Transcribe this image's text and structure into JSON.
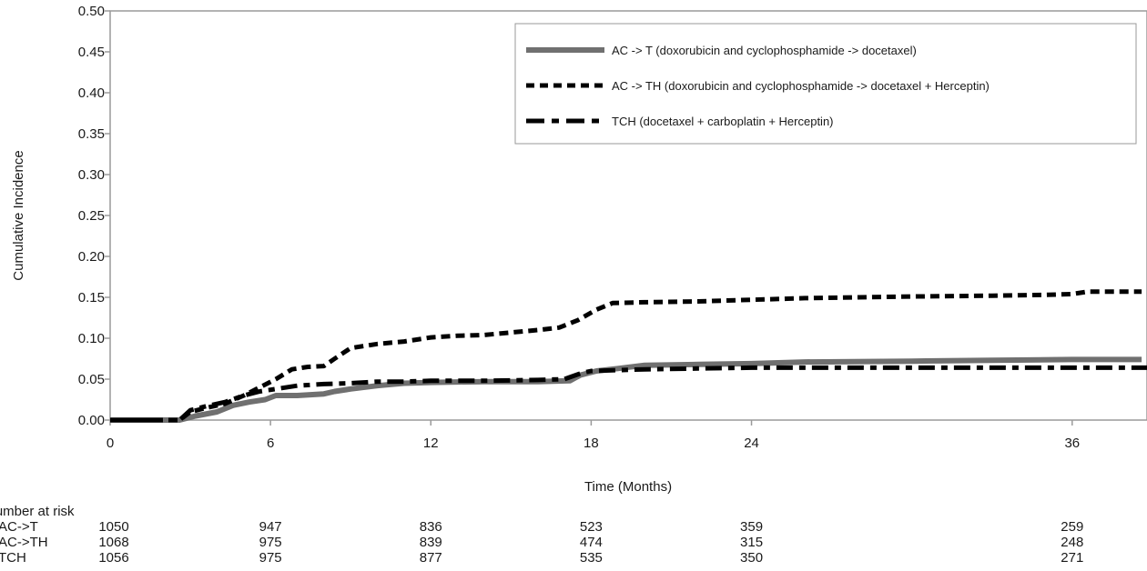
{
  "chart_data": {
    "type": "line",
    "title": "",
    "xlabel": "Time (Months)",
    "ylabel": "Cumulative Incidence",
    "xlim": [
      0,
      38.8
    ],
    "ylim": [
      0,
      0.5
    ],
    "xticks": [
      0,
      6,
      12,
      18,
      24,
      36
    ],
    "yticks": [
      "0.00",
      "0.05",
      "0.10",
      "0.15",
      "0.20",
      "0.25",
      "0.30",
      "0.35",
      "0.40",
      "0.45",
      "0.50"
    ],
    "grid": false,
    "legend_position": "top-right",
    "series": [
      {
        "name": "AC -> T (doxorubicin and cyclophosphamide -> docetaxel)",
        "style": "solid",
        "color": "#707070",
        "points": [
          [
            0,
            0
          ],
          [
            2.6,
            0
          ],
          [
            3.2,
            0.005
          ],
          [
            4,
            0.01
          ],
          [
            4.6,
            0.018
          ],
          [
            5.2,
            0.022
          ],
          [
            5.8,
            0.025
          ],
          [
            6.2,
            0.03
          ],
          [
            7,
            0.03
          ],
          [
            8,
            0.032
          ],
          [
            8.4,
            0.035
          ],
          [
            9,
            0.038
          ],
          [
            10,
            0.042
          ],
          [
            11,
            0.045
          ],
          [
            12,
            0.046
          ],
          [
            14,
            0.047
          ],
          [
            16,
            0.047
          ],
          [
            17.2,
            0.048
          ],
          [
            17.6,
            0.055
          ],
          [
            18.2,
            0.06
          ],
          [
            19,
            0.063
          ],
          [
            20,
            0.067
          ],
          [
            22,
            0.068
          ],
          [
            24,
            0.069
          ],
          [
            26,
            0.071
          ],
          [
            30,
            0.072
          ],
          [
            33,
            0.073
          ],
          [
            36,
            0.074
          ],
          [
            38.6,
            0.074
          ]
        ]
      },
      {
        "name": "AC -> TH (doxorubicin and cyclophosphamide -> docetaxel + Herceptin)",
        "style": "dotted",
        "color": "#000000",
        "points": [
          [
            0,
            0
          ],
          [
            2.6,
            0
          ],
          [
            3,
            0.01
          ],
          [
            3.6,
            0.015
          ],
          [
            4.3,
            0.02
          ],
          [
            5,
            0.03
          ],
          [
            5.6,
            0.04
          ],
          [
            6.2,
            0.05
          ],
          [
            6.8,
            0.062
          ],
          [
            7.4,
            0.065
          ],
          [
            8,
            0.066
          ],
          [
            8.4,
            0.075
          ],
          [
            9,
            0.088
          ],
          [
            10,
            0.093
          ],
          [
            11,
            0.096
          ],
          [
            12,
            0.101
          ],
          [
            13,
            0.103
          ],
          [
            14,
            0.104
          ],
          [
            15,
            0.107
          ],
          [
            16,
            0.11
          ],
          [
            16.8,
            0.113
          ],
          [
            17.5,
            0.122
          ],
          [
            18.2,
            0.135
          ],
          [
            18.8,
            0.143
          ],
          [
            20,
            0.144
          ],
          [
            22,
            0.145
          ],
          [
            24,
            0.147
          ],
          [
            26,
            0.149
          ],
          [
            28,
            0.15
          ],
          [
            30,
            0.151
          ],
          [
            33,
            0.152
          ],
          [
            35,
            0.153
          ],
          [
            36,
            0.154
          ],
          [
            36.6,
            0.157
          ],
          [
            37.6,
            0.157
          ],
          [
            38.6,
            0.157
          ]
        ]
      },
      {
        "name": "TCH (docetaxel + carboplatin + Herceptin)",
        "style": "dash-dot",
        "color": "#000000",
        "points": [
          [
            0,
            0
          ],
          [
            2.6,
            0
          ],
          [
            3,
            0.012
          ],
          [
            3.6,
            0.017
          ],
          [
            4.3,
            0.022
          ],
          [
            5,
            0.03
          ],
          [
            5.6,
            0.035
          ],
          [
            6.2,
            0.038
          ],
          [
            7,
            0.042
          ],
          [
            8,
            0.044
          ],
          [
            9,
            0.045
          ],
          [
            10,
            0.047
          ],
          [
            11,
            0.047
          ],
          [
            12,
            0.048
          ],
          [
            14,
            0.048
          ],
          [
            16,
            0.049
          ],
          [
            17,
            0.05
          ],
          [
            17.6,
            0.057
          ],
          [
            18,
            0.06
          ],
          [
            19,
            0.061
          ],
          [
            20,
            0.062
          ],
          [
            22,
            0.063
          ],
          [
            24,
            0.064
          ],
          [
            30,
            0.064
          ],
          [
            36,
            0.064
          ],
          [
            38.8,
            0.064
          ]
        ]
      }
    ],
    "risk_table": {
      "title": "Number at risk",
      "times": [
        0,
        6,
        12,
        18,
        24,
        36
      ],
      "rows": [
        {
          "label": "AC->T",
          "values": [
            "1050",
            "947",
            "836",
            "523",
            "359",
            "259"
          ]
        },
        {
          "label": "AC->TH",
          "values": [
            "1068",
            "975",
            "839",
            "474",
            "315",
            "248"
          ]
        },
        {
          "label": "TCH",
          "values": [
            "1056",
            "975",
            "877",
            "535",
            "350",
            "271"
          ]
        }
      ]
    }
  }
}
